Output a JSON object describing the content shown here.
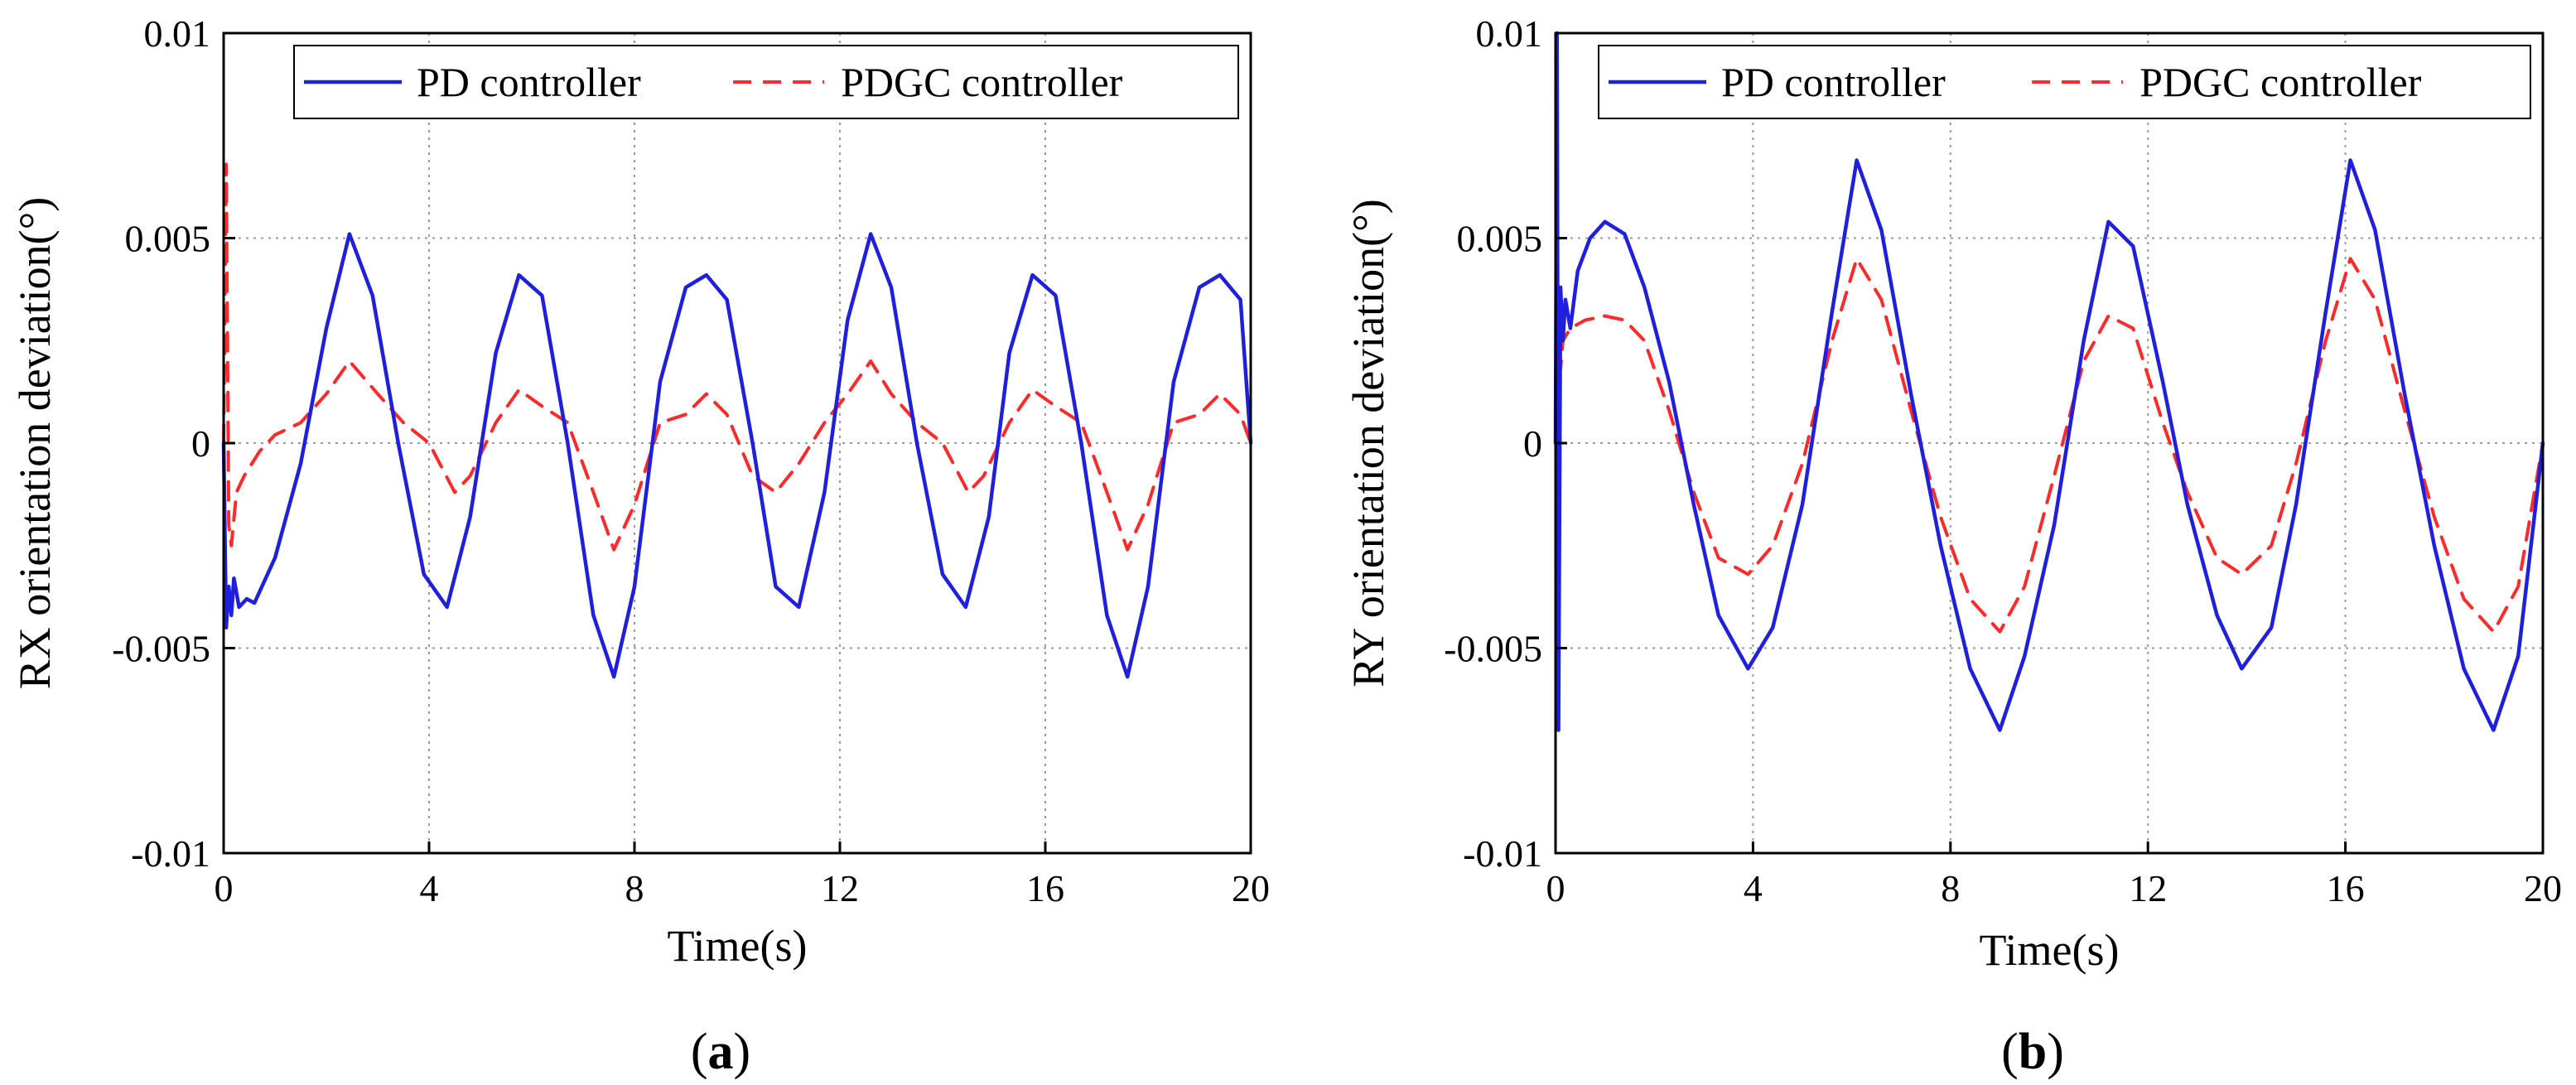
{
  "chart_data": [
    {
      "type": "line",
      "panel_label": "a",
      "title": "",
      "xlabel": "Time(s)",
      "ylabel": "RX orientation deviation(°)",
      "xlim": [
        0,
        20
      ],
      "ylim": [
        -0.01,
        0.01
      ],
      "grid": true,
      "legend_position": "top-right",
      "x_ticks": [
        0,
        4,
        8,
        12,
        16,
        20
      ],
      "x_tick_labels": [
        "0",
        "4",
        "8",
        "12",
        "16",
        "20"
      ],
      "y_ticks": [
        0.01,
        0.005,
        0,
        -0.005,
        -0.01
      ],
      "y_tick_labels": [
        "0.01",
        "0.005",
        "0",
        "-0.005",
        "-0.01"
      ],
      "series": [
        {
          "name": "PD controller",
          "color": "#1f1fdc",
          "style": "solid",
          "x": [
            0,
            0.05,
            0.1,
            0.15,
            0.2,
            0.3,
            0.45,
            0.6,
            1.0,
            1.5,
            2.0,
            2.45,
            2.9,
            3.4,
            3.9,
            4.35,
            4.8,
            5.3,
            5.75,
            6.2,
            6.7,
            7.2,
            7.6,
            8.0,
            8.5,
            9.0,
            9.4,
            9.8,
            10.3,
            10.75,
            11.2,
            11.7,
            12.15,
            12.6,
            13.0,
            13.5,
            14.0,
            14.45,
            14.9,
            15.3,
            15.75,
            16.2,
            16.7,
            17.2,
            17.6,
            18.0,
            18.5,
            19.0,
            19.4,
            19.8,
            20.0
          ],
          "y": [
            0,
            -0.0045,
            -0.0035,
            -0.0042,
            -0.0033,
            -0.004,
            -0.0038,
            -0.0039,
            -0.0028,
            -0.0005,
            0.0028,
            0.0051,
            0.0036,
            0.0,
            -0.0032,
            -0.004,
            -0.0018,
            0.0022,
            0.0041,
            0.0036,
            0.0,
            -0.0042,
            -0.0057,
            -0.0035,
            0.0015,
            0.0038,
            0.0041,
            0.0035,
            0.0,
            -0.0035,
            -0.004,
            -0.0012,
            0.003,
            0.0051,
            0.0038,
            0.0,
            -0.0032,
            -0.004,
            -0.0018,
            0.0022,
            0.0041,
            0.0036,
            0.0,
            -0.0042,
            -0.0057,
            -0.0035,
            0.0015,
            0.0038,
            0.0041,
            0.0035,
            0.0
          ]
        },
        {
          "name": "PDGC controller",
          "color": "#ff2a2a",
          "style": "dashed",
          "x": [
            0,
            0.05,
            0.1,
            0.15,
            0.25,
            0.4,
            0.7,
            1.0,
            1.5,
            2.0,
            2.45,
            3.0,
            3.5,
            4.0,
            4.5,
            4.8,
            5.3,
            5.75,
            6.2,
            6.7,
            7.2,
            7.6,
            8.0,
            8.5,
            9.0,
            9.4,
            9.8,
            10.3,
            10.75,
            11.2,
            11.7,
            12.15,
            12.6,
            13.0,
            13.5,
            14.0,
            14.5,
            14.8,
            15.3,
            15.75,
            16.2,
            16.7,
            17.2,
            17.6,
            18.0,
            18.5,
            19.0,
            19.4,
            19.8,
            20.0
          ],
          "y": [
            0,
            0.0068,
            -0.002,
            -0.0025,
            -0.0012,
            -0.0008,
            -0.0002,
            0.0002,
            0.0005,
            0.0012,
            0.002,
            0.0012,
            0.0005,
            0.0,
            -0.0012,
            -0.0008,
            0.0005,
            0.0013,
            0.0009,
            0.0005,
            -0.0012,
            -0.0026,
            -0.0015,
            0.0005,
            0.0007,
            0.0012,
            0.0007,
            -0.0008,
            -0.0012,
            -0.0005,
            0.0005,
            0.0012,
            0.002,
            0.0012,
            0.0005,
            0.0,
            -0.0012,
            -0.0008,
            0.0005,
            0.0013,
            0.0009,
            0.0005,
            -0.0012,
            -0.0026,
            -0.0015,
            0.0005,
            0.0007,
            0.0012,
            0.0007,
            0.0
          ]
        }
      ]
    },
    {
      "type": "line",
      "panel_label": "b",
      "title": "",
      "xlabel": "Time(s)",
      "ylabel": "RY orientation deviation(°)",
      "xlim": [
        0,
        20
      ],
      "ylim": [
        -0.01,
        0.01
      ],
      "grid": true,
      "legend_position": "top-right",
      "x_ticks": [
        0,
        4,
        8,
        12,
        16,
        20
      ],
      "x_tick_labels": [
        "0",
        "4",
        "8",
        "12",
        "16",
        "20"
      ],
      "y_ticks": [
        0.01,
        0.005,
        0,
        -0.005,
        -0.01
      ],
      "y_tick_labels": [
        "0.01",
        "0.005",
        "0",
        "-0.005",
        "-0.01"
      ],
      "series": [
        {
          "name": "PD controller",
          "color": "#1f1fdc",
          "style": "solid",
          "x": [
            0,
            0.03,
            0.06,
            0.1,
            0.15,
            0.2,
            0.3,
            0.45,
            0.7,
            1.0,
            1.4,
            1.8,
            2.3,
            2.8,
            3.3,
            3.9,
            4.4,
            5.0,
            5.6,
            6.1,
            6.6,
            7.2,
            7.8,
            8.4,
            9.0,
            9.5,
            10.1,
            10.7,
            11.2,
            11.7,
            12.3,
            12.8,
            13.4,
            13.9,
            14.5,
            15.0,
            15.6,
            16.1,
            16.6,
            17.2,
            17.8,
            18.4,
            19.0,
            19.5,
            20.0
          ],
          "y": [
            0,
            0.01,
            -0.007,
            0.0038,
            0.0025,
            0.0035,
            0.0028,
            0.0042,
            0.005,
            0.0054,
            0.0051,
            0.0038,
            0.0015,
            -0.0015,
            -0.0042,
            -0.0055,
            -0.0045,
            -0.0015,
            0.0032,
            0.0069,
            0.0052,
            0.0012,
            -0.0025,
            -0.0055,
            -0.007,
            -0.0052,
            -0.002,
            0.0025,
            0.0054,
            0.0048,
            0.0015,
            -0.0015,
            -0.0042,
            -0.0055,
            -0.0045,
            -0.0015,
            0.0032,
            0.0069,
            0.0052,
            0.0012,
            -0.0025,
            -0.0055,
            -0.007,
            -0.0052,
            0.0
          ]
        },
        {
          "name": "PDGC controller",
          "color": "#ff2a2a",
          "style": "dashed",
          "x": [
            0,
            0.05,
            0.1,
            0.15,
            0.3,
            0.6,
            1.0,
            1.4,
            1.8,
            2.3,
            2.8,
            3.3,
            3.9,
            4.4,
            5.0,
            5.6,
            6.1,
            6.6,
            7.2,
            7.8,
            8.4,
            9.0,
            9.5,
            10.1,
            10.7,
            11.2,
            11.7,
            12.3,
            12.8,
            13.4,
            13.9,
            14.5,
            15.0,
            15.6,
            16.1,
            16.6,
            17.2,
            17.8,
            18.4,
            19.0,
            19.5,
            20.0
          ],
          "y": [
            0,
            0.0032,
            0.0018,
            0.0025,
            0.0028,
            0.003,
            0.0031,
            0.003,
            0.0025,
            0.0008,
            -0.0012,
            -0.0028,
            -0.0032,
            -0.0025,
            -0.0005,
            0.0025,
            0.0045,
            0.0035,
            0.0008,
            -0.0018,
            -0.0038,
            -0.0046,
            -0.0035,
            -0.0008,
            0.002,
            0.0031,
            0.0028,
            0.0005,
            -0.0012,
            -0.0028,
            -0.0032,
            -0.0025,
            -0.0005,
            0.0025,
            0.0045,
            0.0035,
            0.0008,
            -0.0018,
            -0.0038,
            -0.0046,
            -0.0035,
            0.0
          ]
        }
      ]
    }
  ]
}
